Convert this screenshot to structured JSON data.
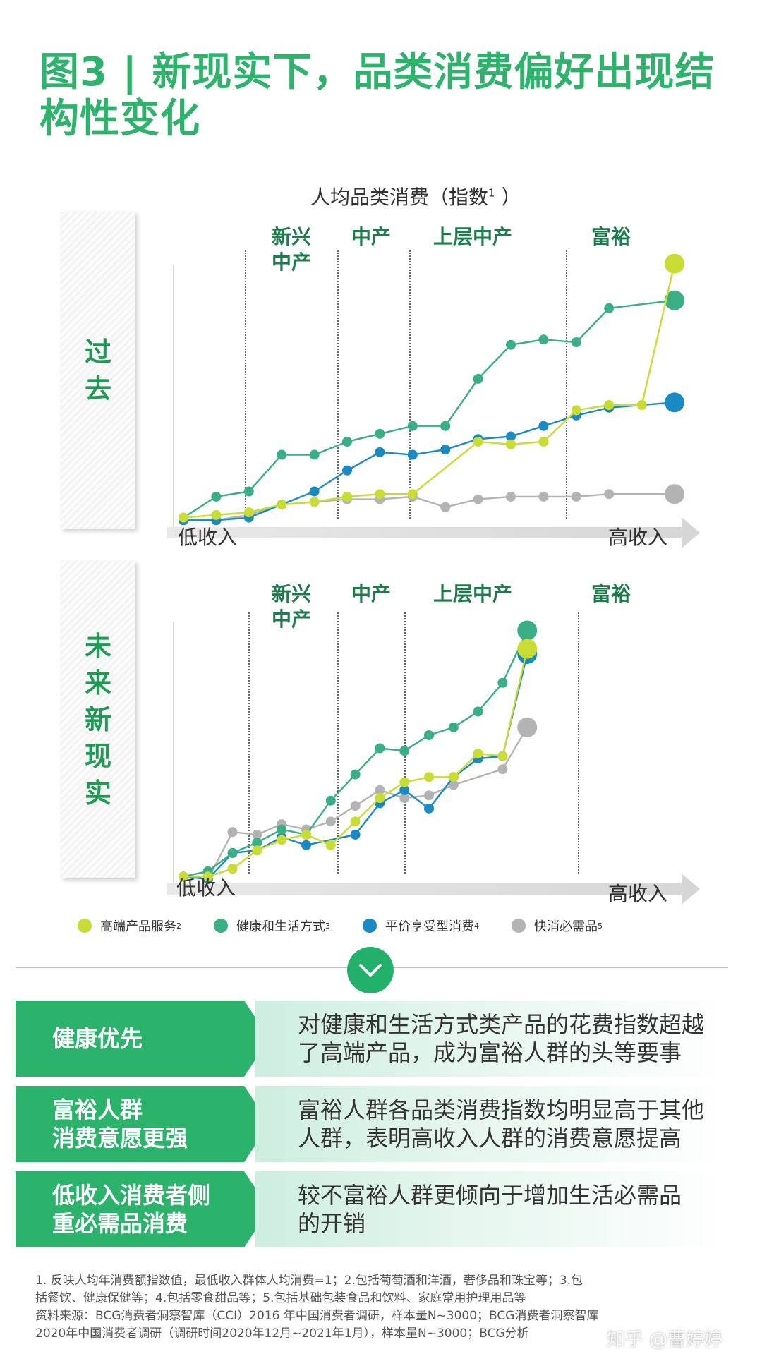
{
  "title": {
    "line1": "图3 | 新现实下，品类消费偏好出现结",
    "line2": "构性变化"
  },
  "chart_subtitle": {
    "text": "人均品类消费（指数",
    "sup": "1",
    "close": " ）"
  },
  "segments": {
    "emerging_l1": "新兴",
    "emerging_l2": "中产",
    "middle": "中产",
    "upper_middle": "上层中产",
    "affluent": "富裕"
  },
  "axis": {
    "low": "低收入",
    "high": "高收入"
  },
  "colors": {
    "premium": "#c8dc33",
    "health": "#3aae85",
    "value": "#1a8ac4",
    "fmcg": "#b3b3b3",
    "brand_green": "#2bb36b",
    "title_green": "#2db36b"
  },
  "legend": [
    {
      "label": "高端产品服务",
      "sup": "2"
    },
    {
      "label": "健康和生活方式",
      "sup": "3"
    },
    {
      "label": "平价享受型消费",
      "sup": "4"
    },
    {
      "label": "快消必需品",
      "sup": "5"
    }
  ],
  "chart_data": [
    {
      "type": "line",
      "title": "过去",
      "xlabel": "低收入 → 高收入",
      "ylabel": "人均品类消费（指数1 ）",
      "x": [
        1,
        2,
        3,
        4,
        5,
        6,
        7,
        8,
        9,
        10,
        11,
        12,
        13,
        14,
        15,
        16
      ],
      "ylim": [
        0,
        100
      ],
      "series": [
        {
          "name": "高端产品服务",
          "values": [
            2,
            3,
            4,
            7,
            8,
            10,
            11,
            11,
            31,
            30,
            31,
            43,
            45,
            45,
            99
          ],
          "x": [
            1,
            2,
            3,
            4,
            5,
            6,
            7,
            8,
            10,
            11,
            12,
            13,
            14,
            15,
            16
          ]
        },
        {
          "name": "健康和生活方式",
          "values": [
            2,
            10,
            12,
            26,
            26,
            31,
            34,
            37,
            37,
            55,
            68,
            70,
            69,
            82,
            85
          ],
          "x": [
            1,
            2,
            3,
            4,
            5,
            6,
            7,
            8,
            9,
            10,
            11,
            12,
            13,
            14,
            16
          ]
        },
        {
          "name": "平价享受型消费",
          "values": [
            1,
            1,
            2,
            7,
            12,
            20,
            27,
            26,
            28,
            32,
            33,
            37,
            41,
            44,
            46
          ],
          "x": [
            1,
            2,
            3,
            4,
            5,
            6,
            7,
            8,
            9,
            10,
            11,
            12,
            13,
            14,
            16
          ]
        },
        {
          "name": "快消必需品",
          "values": [
            1,
            1,
            3,
            7,
            8,
            9,
            9,
            10,
            6,
            9,
            10,
            10,
            10,
            11,
            11
          ],
          "x": [
            1,
            2,
            3,
            4,
            5,
            6,
            7,
            8,
            9,
            10,
            11,
            12,
            13,
            14,
            16
          ]
        }
      ]
    },
    {
      "type": "line",
      "title": "未来新现实",
      "xlabel": "低收入 → 高收入",
      "ylabel": "人均品类消费（指数）",
      "x": [
        1,
        2,
        3,
        4,
        5,
        6,
        7,
        8,
        9,
        10,
        11,
        12,
        13,
        14,
        15,
        16,
        17,
        18,
        19,
        20,
        21
      ],
      "ylim": [
        0,
        100
      ],
      "series": [
        {
          "name": "高端产品服务",
          "values": [
            1,
            1,
            4,
            11,
            15,
            17,
            13,
            22,
            31,
            37,
            39,
            39,
            48,
            47,
            88
          ],
          "x": [
            1,
            2,
            3,
            4,
            5,
            6,
            7,
            8,
            9,
            10,
            11,
            12,
            13,
            14,
            15
          ]
        },
        {
          "name": "健康和生活方式",
          "values": [
            1,
            3,
            10,
            14,
            19,
            17,
            30,
            40,
            50,
            49,
            55,
            58,
            64,
            75,
            95
          ],
          "x": [
            1,
            2,
            3,
            4,
            5,
            6,
            7,
            8,
            9,
            10,
            11,
            12,
            13,
            14,
            15
          ]
        },
        {
          "name": "平价享受型消费",
          "values": [
            1,
            0,
            10,
            11,
            16,
            13,
            17,
            29,
            34,
            27,
            39,
            46,
            47,
            86
          ],
          "x": [
            1,
            2,
            3,
            4,
            5,
            6,
            8,
            9,
            10,
            11,
            12,
            13,
            14,
            15
          ]
        },
        {
          "name": "快消必需品",
          "values": [
            1,
            0,
            18,
            17,
            21,
            19,
            22,
            28,
            34,
            31,
            32,
            36,
            42,
            58
          ],
          "x": [
            1,
            2,
            3,
            4,
            5,
            6,
            7,
            8,
            9,
            10,
            11,
            12,
            14,
            15
          ]
        }
      ]
    }
  ],
  "summary_rows": [
    {
      "label_l1": "健康优先",
      "label_l2": "",
      "desc_l1": "对健康和生活方式类产品的花费指数超越",
      "desc_l2": "了高端产品，成为富裕人群的头等要事"
    },
    {
      "label_l1": "富裕人群",
      "label_l2": "消费意愿更强",
      "desc_l1": "富裕人群各品类消费指数均明显高于其他",
      "desc_l2": "人群，表明高收入人群的消费意愿提高"
    },
    {
      "label_l1": "低收入消费者侧",
      "label_l2": "重必需品消费",
      "desc_l1": "较不富裕人群更倾向于增加生活必需品",
      "desc_l2": "的开销"
    }
  ],
  "notes": {
    "l1": "1. 反映人均年消费额指数值，最低收入群体人均消费=1；2.包括葡萄酒和洋酒，奢侈品和珠宝等；3.包",
    "l2": "括餐饮、健康保健等；4.包括零食甜品等；5.包括基础包装食品和饮料、家庭常用护理用品等",
    "l3": "资料来源：BCG消费者洞察智库（CCI）2016 年中国消费者调研，样本量N~3000；BCG消费者洞察智库",
    "l4": "2020年中国消费者调研（调研时间2020年12月~2021年1月），样本量N~3000；BCG分析"
  },
  "watermark": "知乎 @曹婷婷"
}
